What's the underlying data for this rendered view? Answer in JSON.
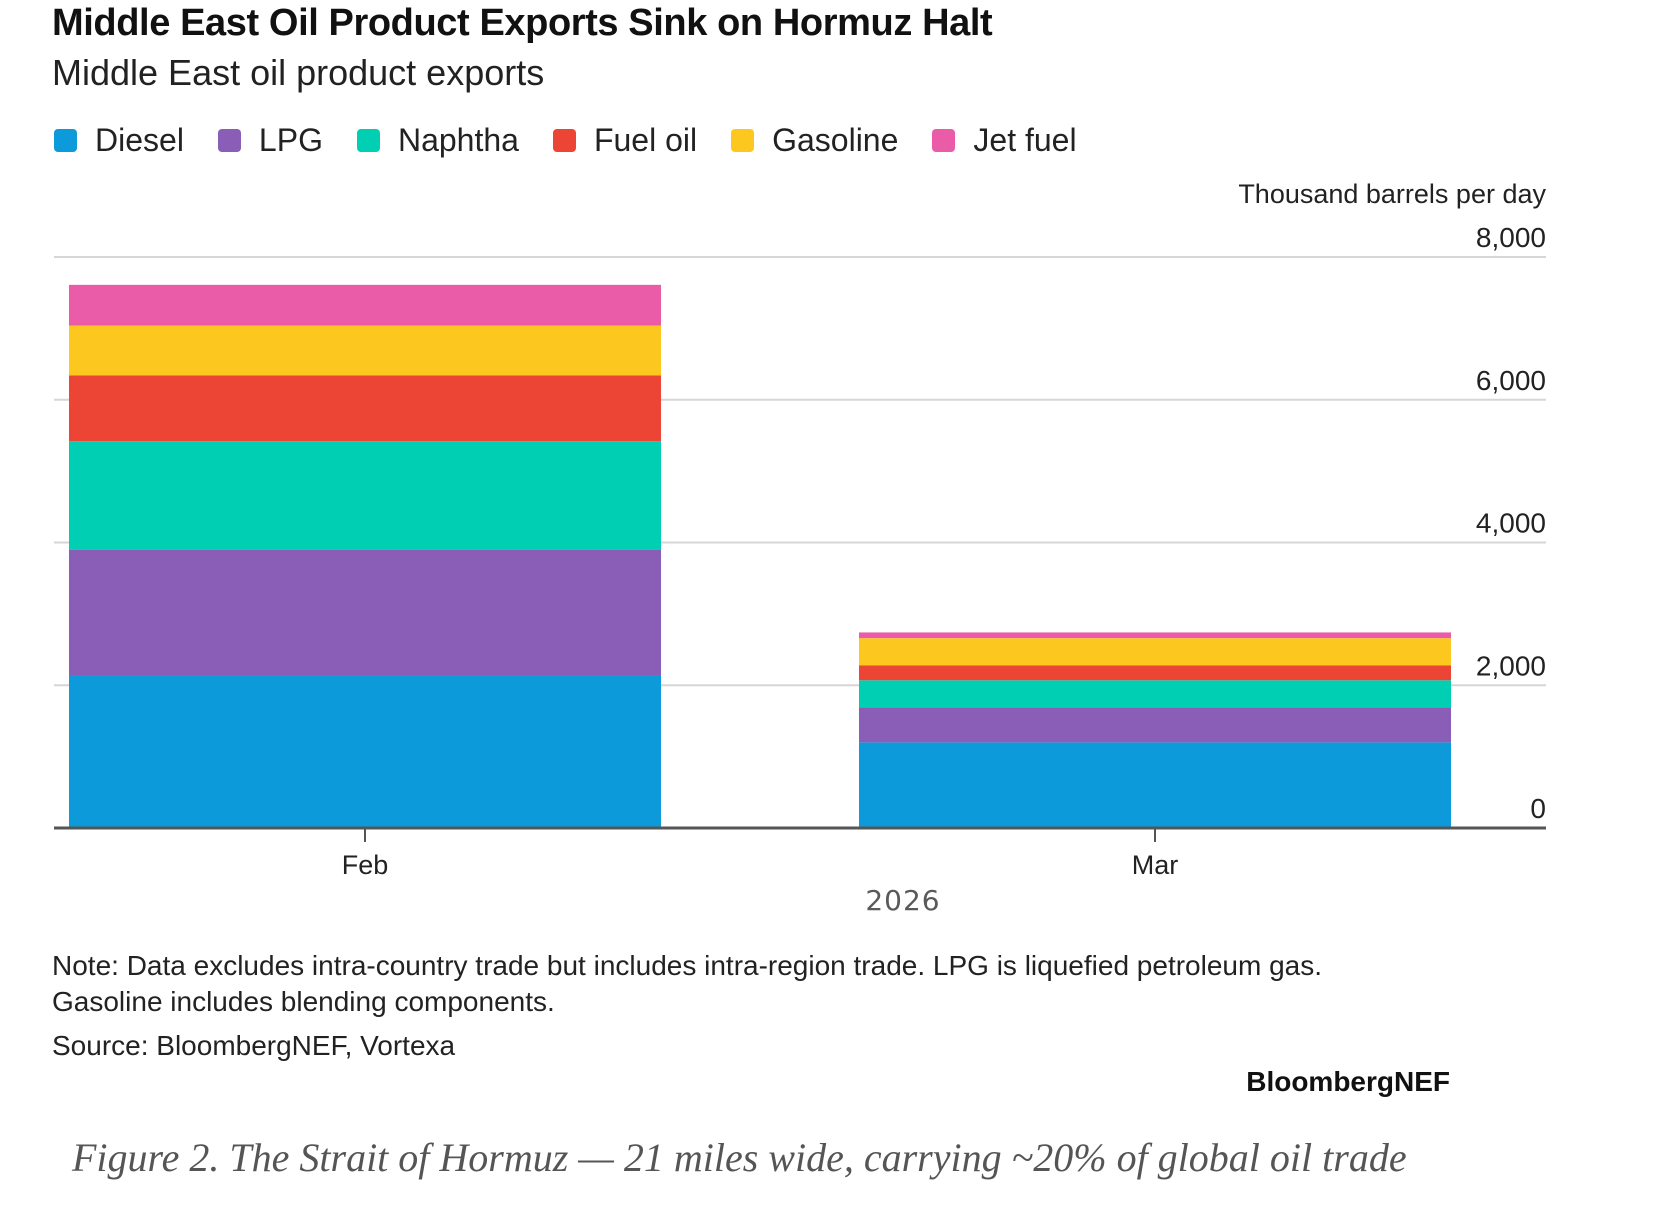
{
  "header": {
    "title": "Middle East Oil Product Exports Sink on Hormuz Halt",
    "subtitle": "Middle East oil product exports"
  },
  "legend": [
    {
      "label": "Diesel",
      "color": "#0D9ADB"
    },
    {
      "label": "LPG",
      "color": "#8A5DB7"
    },
    {
      "label": "Naphtha",
      "color": "#00CFB3"
    },
    {
      "label": "Fuel oil",
      "color": "#EC4435"
    },
    {
      "label": "Gasoline",
      "color": "#FCC820"
    },
    {
      "label": "Jet fuel",
      "color": "#EB5CA8"
    }
  ],
  "chart_data": {
    "type": "bar",
    "stacked": true,
    "title": "Middle East Oil Product Exports Sink on Hormuz Halt",
    "subtitle": "Middle East oil product exports",
    "categories": [
      "Feb",
      "Mar"
    ],
    "xlabel": "2026",
    "ylabel": "Thousand barrels per day",
    "ylim": [
      0,
      8000
    ],
    "yticks": [
      0,
      2000,
      4000,
      6000,
      8000
    ],
    "ytick_labels": [
      "0",
      "2,000",
      "4,000",
      "6,000",
      "8,000"
    ],
    "y_axis_position": "right",
    "grid": true,
    "legend_position": "top-left",
    "series": [
      {
        "name": "Diesel",
        "color": "#0D9ADB",
        "values": [
          2130,
          1200
        ]
      },
      {
        "name": "LPG",
        "color": "#8A5DB7",
        "values": [
          1770,
          490
        ]
      },
      {
        "name": "Naphtha",
        "color": "#00CFB3",
        "values": [
          1520,
          380
        ]
      },
      {
        "name": "Fuel oil",
        "color": "#EC4435",
        "values": [
          920,
          210
        ]
      },
      {
        "name": "Gasoline",
        "color": "#FCC820",
        "values": [
          700,
          380
        ]
      },
      {
        "name": "Jet fuel",
        "color": "#EB5CA8",
        "values": [
          570,
          80
        ]
      }
    ]
  },
  "footer": {
    "note_line1": "Note: Data excludes intra-country trade but includes intra-region trade. LPG is liquefied petroleum gas.",
    "note_line2": "Gasoline includes blending components.",
    "source": "Source: BloombergNEF, Vortexa",
    "brand": "BloombergNEF",
    "caption": "Figure 2. The Strait of Hormuz — 21 miles wide, carrying ~20% of global oil trade"
  }
}
